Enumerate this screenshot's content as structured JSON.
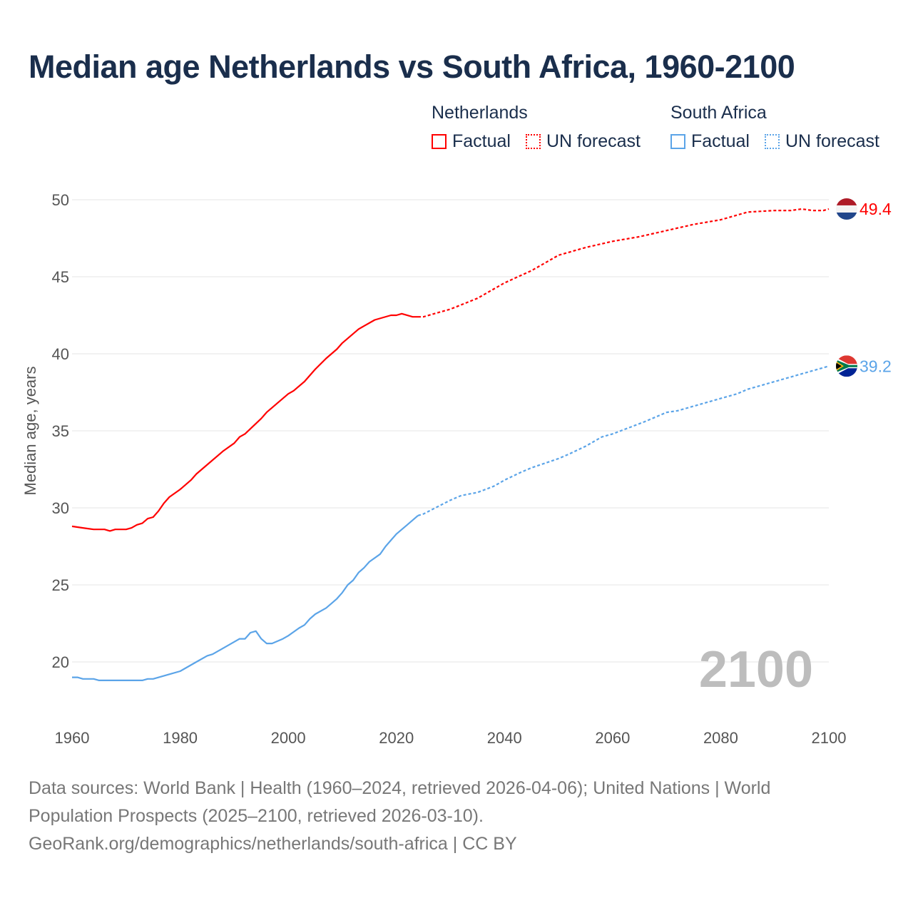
{
  "title": "Median age Netherlands vs South Africa, 1960-2100",
  "legend": {
    "groups": [
      {
        "name": "Netherlands",
        "factual": "Factual",
        "forecast": "UN forecast",
        "color": "#ff0000"
      },
      {
        "name": "South Africa",
        "factual": "Factual",
        "forecast": "UN forecast",
        "color": "#5ba4e8"
      }
    ]
  },
  "footer": {
    "line1": "Data sources: World Bank | Health (1960–2024, retrieved 2026-04-06); United Nations | World",
    "line2": "Population Prospects (2025–2100, retrieved 2026-03-10).",
    "line3": "GeoRank.org/demographics/netherlands/south-africa | CC BY"
  },
  "chart_data": {
    "type": "line",
    "title": "Median age Netherlands vs South Africa, 1960-2100",
    "xlabel": "",
    "ylabel": "Median age, years",
    "xlim": [
      1960,
      2100
    ],
    "ylim": [
      17.5,
      50
    ],
    "xticks": [
      1960,
      1980,
      2000,
      2020,
      2040,
      2060,
      2080,
      2100
    ],
    "yticks": [
      20,
      25,
      30,
      35,
      40,
      45,
      50
    ],
    "grid": true,
    "year_watermark": "2100",
    "series": [
      {
        "name": "Netherlands",
        "color": "#ff0000",
        "end_label": "49.4",
        "factual": [
          [
            1960,
            28.8
          ],
          [
            1962,
            28.7
          ],
          [
            1964,
            28.6
          ],
          [
            1966,
            28.6
          ],
          [
            1967,
            28.5
          ],
          [
            1968,
            28.6
          ],
          [
            1970,
            28.6
          ],
          [
            1971,
            28.7
          ],
          [
            1972,
            28.9
          ],
          [
            1973,
            29.0
          ],
          [
            1974,
            29.3
          ],
          [
            1975,
            29.4
          ],
          [
            1976,
            29.8
          ],
          [
            1977,
            30.3
          ],
          [
            1978,
            30.7
          ],
          [
            1980,
            31.2
          ],
          [
            1982,
            31.8
          ],
          [
            1983,
            32.2
          ],
          [
            1985,
            32.8
          ],
          [
            1988,
            33.7
          ],
          [
            1990,
            34.2
          ],
          [
            1991,
            34.6
          ],
          [
            1992,
            34.8
          ],
          [
            1995,
            35.8
          ],
          [
            1996,
            36.2
          ],
          [
            1998,
            36.8
          ],
          [
            2000,
            37.4
          ],
          [
            2001,
            37.6
          ],
          [
            2003,
            38.2
          ],
          [
            2005,
            39.0
          ],
          [
            2007,
            39.7
          ],
          [
            2009,
            40.3
          ],
          [
            2010,
            40.7
          ],
          [
            2013,
            41.6
          ],
          [
            2016,
            42.2
          ],
          [
            2019,
            42.5
          ],
          [
            2020,
            42.5
          ],
          [
            2021,
            42.6
          ],
          [
            2023,
            42.4
          ],
          [
            2024,
            42.4
          ]
        ],
        "forecast": [
          [
            2024,
            42.4
          ],
          [
            2025,
            42.4
          ],
          [
            2027,
            42.6
          ],
          [
            2030,
            42.9
          ],
          [
            2035,
            43.6
          ],
          [
            2040,
            44.6
          ],
          [
            2045,
            45.4
          ],
          [
            2050,
            46.4
          ],
          [
            2055,
            46.9
          ],
          [
            2060,
            47.3
          ],
          [
            2065,
            47.6
          ],
          [
            2070,
            48.0
          ],
          [
            2075,
            48.4
          ],
          [
            2080,
            48.7
          ],
          [
            2085,
            49.2
          ],
          [
            2090,
            49.3
          ],
          [
            2093,
            49.3
          ],
          [
            2095,
            49.4
          ],
          [
            2097,
            49.3
          ],
          [
            2099,
            49.3
          ],
          [
            2100,
            49.4
          ]
        ]
      },
      {
        "name": "South Africa",
        "color": "#5ba4e8",
        "end_label": "39.2",
        "factual": [
          [
            1960,
            19.0
          ],
          [
            1961,
            19.0
          ],
          [
            1962,
            18.9
          ],
          [
            1964,
            18.9
          ],
          [
            1965,
            18.8
          ],
          [
            1973,
            18.8
          ],
          [
            1974,
            18.9
          ],
          [
            1975,
            18.9
          ],
          [
            1978,
            19.2
          ],
          [
            1980,
            19.4
          ],
          [
            1983,
            20.0
          ],
          [
            1985,
            20.4
          ],
          [
            1986,
            20.5
          ],
          [
            1988,
            20.9
          ],
          [
            1991,
            21.5
          ],
          [
            1992,
            21.5
          ],
          [
            1993,
            21.9
          ],
          [
            1994,
            22.0
          ],
          [
            1995,
            21.5
          ],
          [
            1996,
            21.2
          ],
          [
            1997,
            21.2
          ],
          [
            1999,
            21.5
          ],
          [
            2000,
            21.7
          ],
          [
            2002,
            22.2
          ],
          [
            2003,
            22.4
          ],
          [
            2004,
            22.8
          ],
          [
            2005,
            23.1
          ],
          [
            2007,
            23.5
          ],
          [
            2008,
            23.8
          ],
          [
            2009,
            24.1
          ],
          [
            2010,
            24.5
          ],
          [
            2011,
            25.0
          ],
          [
            2012,
            25.3
          ],
          [
            2013,
            25.8
          ],
          [
            2014,
            26.1
          ],
          [
            2015,
            26.5
          ],
          [
            2017,
            27.0
          ],
          [
            2018,
            27.5
          ],
          [
            2019,
            27.9
          ],
          [
            2020,
            28.3
          ],
          [
            2022,
            28.9
          ],
          [
            2024,
            29.5
          ]
        ],
        "forecast": [
          [
            2024,
            29.5
          ],
          [
            2025,
            29.6
          ],
          [
            2030,
            30.5
          ],
          [
            2032,
            30.8
          ],
          [
            2035,
            31.0
          ],
          [
            2038,
            31.4
          ],
          [
            2040,
            31.8
          ],
          [
            2043,
            32.3
          ],
          [
            2045,
            32.6
          ],
          [
            2050,
            33.2
          ],
          [
            2052,
            33.5
          ],
          [
            2055,
            34.0
          ],
          [
            2058,
            34.6
          ],
          [
            2060,
            34.8
          ],
          [
            2063,
            35.2
          ],
          [
            2066,
            35.6
          ],
          [
            2070,
            36.2
          ],
          [
            2072,
            36.3
          ],
          [
            2075,
            36.6
          ],
          [
            2080,
            37.1
          ],
          [
            2083,
            37.4
          ],
          [
            2085,
            37.7
          ],
          [
            2090,
            38.2
          ],
          [
            2095,
            38.7
          ],
          [
            2100,
            39.2
          ]
        ]
      }
    ]
  }
}
